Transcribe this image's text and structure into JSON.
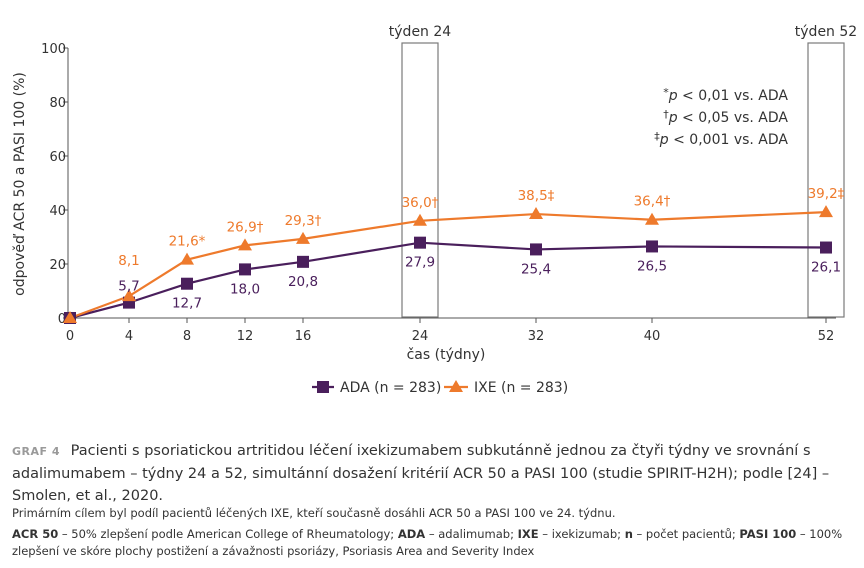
{
  "chart_data": {
    "type": "line",
    "ylabel": "odpověď ACR 50 a PASI 100 (%)",
    "xlabel": "čas (týdny)",
    "x_ticks": [
      "0",
      "4",
      "8",
      "12",
      "16",
      "24",
      "32",
      "40",
      "52"
    ],
    "y_ticks": [
      "0",
      "20",
      "40",
      "60",
      "80",
      "100"
    ],
    "ylim": [
      0,
      100
    ],
    "x": [
      0,
      4,
      8,
      12,
      16,
      24,
      32,
      40,
      52
    ],
    "series": [
      {
        "name": "ADA (n = 283)",
        "color": "#4a1f5c",
        "marker": "square",
        "values": [
          0,
          5.7,
          12.7,
          18.0,
          20.8,
          27.9,
          25.4,
          26.5,
          26.1
        ],
        "labels": [
          "",
          "5,7",
          "12,7",
          "18,0",
          "20,8",
          "27,9",
          "25,4",
          "26,5",
          "26,1"
        ]
      },
      {
        "name": "IXE (n = 283)",
        "color": "#ee7a2c",
        "marker": "triangle",
        "values": [
          0,
          8.1,
          21.6,
          26.9,
          29.3,
          36.0,
          38.5,
          36.4,
          39.2
        ],
        "labels": [
          "",
          "8,1",
          "21,6*",
          "26,9†",
          "29,3†",
          "36,0†",
          "38,5‡",
          "36,4†",
          "39,2‡"
        ]
      }
    ],
    "highlights": [
      {
        "week": 24,
        "label": "týden 24"
      },
      {
        "week": 52,
        "label": "týden 52"
      }
    ],
    "annotations": [
      {
        "sym": "*",
        "text": "p",
        "rest": " < 0,01 vs. ADA"
      },
      {
        "sym": "†",
        "text": "p",
        "rest": " < 0,05 vs. ADA"
      },
      {
        "sym": "‡",
        "text": "p",
        "rest": " < 0,001 vs. ADA"
      }
    ],
    "legend_position": "bottom-center",
    "grid": false
  },
  "caption": {
    "label": "GRAF 4",
    "title": "Pacienti s psoriatickou artritidou léčení ixekizumabem subkutánně jednou za čtyři týdny ve srovnání s adalimumabem – týdny 24 a 52, simultánní dosažení kritérií ACR 50 a PASI 100 (studie SPIRIT-H2H); podle [24] – Smolen, et al., 2020.",
    "note": "Primárním cílem byl podíl pacientů léčených IXE, kteří současně dosáhli ACR 50 a PASI 100 ve 24. týdnu.",
    "abbr": [
      {
        "term": "ACR 50",
        "def": " – 50% zlepšení podle American College of Rheumatology; "
      },
      {
        "term": "ADA",
        "def": " – adalimumab; "
      },
      {
        "term": "IXE",
        "def": " – ixekizumab; "
      },
      {
        "term": "n",
        "def": " – počet pacientů; "
      },
      {
        "term": "PASI 100",
        "def": " – 100% zlepšení ve skóre plochy postižení a závažnosti psoriázy, Psoriasis Area and Severity Index"
      }
    ]
  }
}
